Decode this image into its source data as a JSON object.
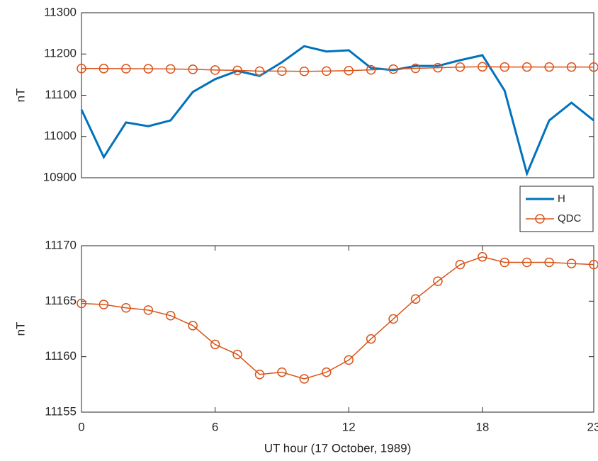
{
  "chart_data": [
    {
      "type": "line",
      "x": [
        0,
        1,
        2,
        3,
        4,
        5,
        6,
        7,
        8,
        9,
        10,
        11,
        12,
        13,
        14,
        15,
        16,
        17,
        18,
        19,
        20,
        21,
        22,
        23
      ],
      "xlim": [
        0,
        23
      ],
      "ylim": [
        10900,
        11300
      ],
      "yticks": [
        10900,
        11000,
        11100,
        11200,
        11300
      ],
      "ylabel": "nT",
      "legend": "below-right",
      "series": [
        {
          "name": "H",
          "color": "#0072bd",
          "marker": "none",
          "values": [
            11065,
            10950,
            11034,
            11025,
            11039,
            11108,
            11139,
            11159,
            11147,
            11180,
            11219,
            11206,
            11209,
            11166,
            11161,
            11171,
            11171,
            11185,
            11197,
            11111,
            10910,
            11039,
            11082,
            11039
          ]
        },
        {
          "name": "QDC",
          "color": "#d95319",
          "marker": "circle",
          "values": [
            11164.8,
            11164.7,
            11164.4,
            11164.2,
            11163.7,
            11162.8,
            11161.1,
            11160.2,
            11158.4,
            11158.6,
            11158.0,
            11158.6,
            11159.7,
            11161.6,
            11163.4,
            11165.2,
            11166.8,
            11168.3,
            11169.0,
            11168.5,
            11168.5,
            11168.5,
            11168.4,
            11168.3
          ]
        }
      ]
    },
    {
      "type": "line",
      "x": [
        0,
        1,
        2,
        3,
        4,
        5,
        6,
        7,
        8,
        9,
        10,
        11,
        12,
        13,
        14,
        15,
        16,
        17,
        18,
        19,
        20,
        21,
        22,
        23
      ],
      "xlim": [
        0,
        23
      ],
      "xticks": [
        0,
        6,
        12,
        18,
        23
      ],
      "xlabel": "UT hour (17 October, 1989)",
      "ylim": [
        11155,
        11170
      ],
      "yticks": [
        11155,
        11160,
        11165,
        11170
      ],
      "ylabel": "nT",
      "series": [
        {
          "color": "#d95319",
          "marker": "circle",
          "values": [
            11164.8,
            11164.7,
            11164.4,
            11164.2,
            11163.7,
            11162.8,
            11161.1,
            11160.2,
            11158.4,
            11158.6,
            11158.0,
            11158.6,
            11159.7,
            11161.6,
            11163.4,
            11165.2,
            11166.8,
            11168.3,
            11169.0,
            11168.5,
            11168.5,
            11168.5,
            11168.4,
            11168.3
          ]
        }
      ]
    }
  ]
}
